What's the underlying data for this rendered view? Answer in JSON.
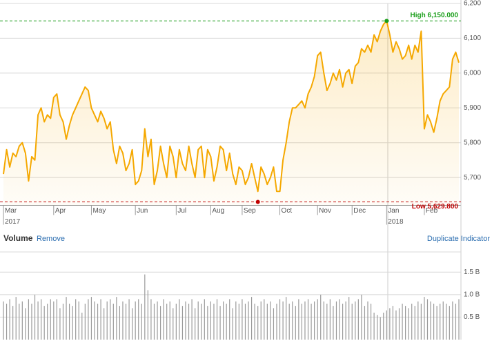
{
  "chart_data": [
    {
      "type": "line",
      "color": "#f5a800",
      "values": [
        5710,
        5780,
        5730,
        5770,
        5760,
        5790,
        5800,
        5770,
        5690,
        5760,
        5750,
        5880,
        5900,
        5860,
        5880,
        5870,
        5930,
        5940,
        5880,
        5860,
        5810,
        5850,
        5880,
        5900,
        5920,
        5940,
        5960,
        5950,
        5900,
        5880,
        5860,
        5890,
        5870,
        5840,
        5860,
        5780,
        5740,
        5790,
        5770,
        5720,
        5740,
        5780,
        5680,
        5690,
        5720,
        5840,
        5760,
        5810,
        5680,
        5720,
        5790,
        5740,
        5700,
        5790,
        5760,
        5700,
        5780,
        5740,
        5720,
        5790,
        5740,
        5700,
        5780,
        5790,
        5700,
        5780,
        5760,
        5690,
        5730,
        5790,
        5780,
        5720,
        5770,
        5710,
        5680,
        5730,
        5720,
        5680,
        5700,
        5740,
        5700,
        5660,
        5730,
        5710,
        5680,
        5700,
        5730,
        5660,
        5660,
        5750,
        5800,
        5860,
        5900,
        5900,
        5910,
        5920,
        5900,
        5940,
        5960,
        5990,
        6050,
        6060,
        6000,
        5950,
        5970,
        6000,
        5980,
        6010,
        5960,
        6000,
        6010,
        5970,
        6020,
        6030,
        6070,
        6060,
        6080,
        6060,
        6110,
        6090,
        6120,
        6140,
        6150,
        6110,
        6060,
        6090,
        6070,
        6040,
        6050,
        6080,
        6040,
        6080,
        6060,
        6120,
        5840,
        5880,
        5860,
        5830,
        5870,
        5920,
        5940,
        5950,
        5960,
        6040,
        6060,
        6030
      ],
      "xlim": [
        0,
        145
      ],
      "xticks": [
        {
          "value": 0,
          "label": "Mar"
        },
        {
          "value": 16,
          "label": "Apr"
        },
        {
          "value": 28,
          "label": "May"
        },
        {
          "value": 42,
          "label": "Jun"
        },
        {
          "value": 55,
          "label": "Jul"
        },
        {
          "value": 66,
          "label": "Aug"
        },
        {
          "value": 76,
          "label": "Sep"
        },
        {
          "value": 88,
          "label": "Oct"
        },
        {
          "value": 100,
          "label": "Nov"
        },
        {
          "value": 111,
          "label": "Dec"
        },
        {
          "value": 122,
          "label": "Jan"
        },
        {
          "value": 134,
          "label": "Feb"
        }
      ],
      "years": [
        {
          "value": 0,
          "label": "2017"
        },
        {
          "value": 122,
          "label": "2018"
        }
      ],
      "ylim": [
        5620,
        6200
      ],
      "yticks": [
        {
          "value": 5700,
          "label": "5,700"
        },
        {
          "value": 5800,
          "label": "5,800"
        },
        {
          "value": 5900,
          "label": "5,900"
        },
        {
          "value": 6000,
          "label": "6,000"
        },
        {
          "value": 6100,
          "label": "6,100"
        },
        {
          "value": 6200,
          "label": "6,200"
        }
      ],
      "reference_lines": [
        {
          "value": 6150,
          "label": "High 6,150.000",
          "color": "#1a9e1a"
        },
        {
          "value": 5629.8,
          "label": "Low 5,629.800",
          "color": "#c00000"
        }
      ],
      "grid": true
    },
    {
      "type": "bar",
      "title": "Volume",
      "color": "#9a9a9a",
      "values": [
        0.85,
        0.8,
        0.9,
        0.75,
        0.95,
        0.8,
        0.85,
        0.7,
        0.9,
        0.8,
        1.0,
        0.85,
        0.9,
        0.75,
        0.8,
        0.9,
        0.85,
        0.9,
        0.7,
        0.8,
        0.95,
        0.8,
        0.75,
        0.9,
        0.85,
        0.6,
        0.8,
        0.9,
        0.95,
        0.85,
        0.8,
        0.9,
        0.7,
        0.85,
        0.9,
        0.8,
        0.95,
        0.75,
        0.85,
        0.8,
        0.9,
        0.7,
        0.85,
        0.9,
        0.8,
        1.45,
        1.1,
        0.9,
        0.8,
        0.85,
        0.75,
        0.9,
        0.8,
        0.85,
        0.7,
        0.8,
        0.9,
        0.75,
        0.85,
        0.8,
        0.9,
        0.7,
        0.85,
        0.8,
        0.9,
        0.75,
        0.85,
        0.8,
        0.9,
        0.75,
        0.85,
        0.8,
        0.9,
        0.7,
        0.85,
        0.8,
        0.9,
        0.8,
        0.85,
        0.95,
        0.8,
        0.75,
        0.85,
        0.9,
        0.8,
        0.85,
        0.7,
        0.8,
        0.9,
        0.85,
        0.95,
        0.8,
        0.85,
        0.75,
        0.9,
        0.8,
        0.85,
        0.9,
        0.8,
        0.85,
        0.9,
        1.0,
        0.85,
        0.8,
        0.9,
        0.75,
        0.85,
        0.9,
        0.8,
        0.85,
        0.95,
        0.8,
        0.85,
        0.9,
        1.0,
        0.75,
        0.85,
        0.8,
        0.6,
        0.55,
        0.5,
        0.6,
        0.65,
        0.7,
        0.75,
        0.65,
        0.7,
        0.8,
        0.75,
        0.7,
        0.8,
        0.75,
        0.85,
        0.8,
        0.95,
        0.9,
        0.85,
        0.8,
        0.75,
        0.8,
        0.85,
        0.8,
        0.75,
        0.85,
        0.8,
        0.9
      ],
      "ylim": [
        0,
        1.95
      ],
      "yticks": [
        {
          "value": 0.5,
          "label": "0.5 B"
        },
        {
          "value": 1.0,
          "label": "1.0 B"
        },
        {
          "value": 1.5,
          "label": "1.5 B"
        }
      ],
      "grid": true
    }
  ],
  "controls": {
    "remove": "Remove",
    "duplicate": "Duplicate Indicator"
  }
}
